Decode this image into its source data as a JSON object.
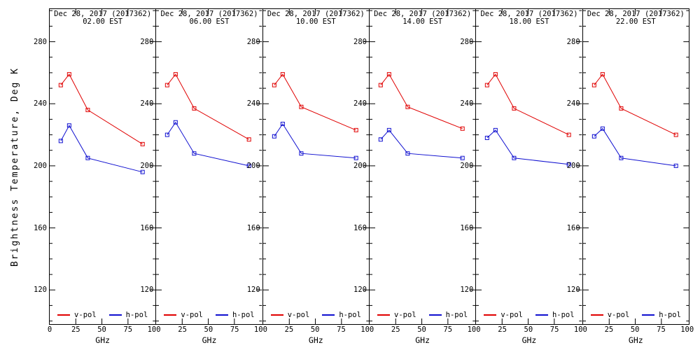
{
  "figure": {
    "y_axis_title": "Brightness Temperature, Deg K",
    "x_axis_title": "GHz",
    "colors": {
      "v_pol": "#e00000",
      "h_pol": "#1010d0",
      "axis": "#000000",
      "background": "#ffffff"
    }
  },
  "chart_data": {
    "type": "line",
    "x": [
      10.65,
      18.7,
      36.5,
      89.0
    ],
    "xlabel": "GHz",
    "ylabel": "Brightness Temperature, Deg K",
    "xlim": [
      0,
      101.5
    ],
    "ylim": [
      98,
      301
    ],
    "x_ticks": [
      0,
      25,
      50,
      75,
      100
    ],
    "y_ticks": [
      120,
      160,
      200,
      240,
      280
    ],
    "y_minor_step": 10,
    "grid": false,
    "legend_position": "bottom-inside-each-panel",
    "legend": [
      {
        "label": "v-pol",
        "color": "#e00000"
      },
      {
        "label": "h-pol",
        "color": "#1010d0"
      }
    ],
    "panels": [
      {
        "title_line1": "Dec 28, 2017 (2017362)",
        "title_line2": "02.00 EST",
        "series": [
          {
            "name": "v-pol",
            "color": "#e00000",
            "values": [
              252,
              259,
              236,
              214
            ]
          },
          {
            "name": "h-pol",
            "color": "#1010d0",
            "values": [
              216,
              226,
              205,
              196
            ]
          }
        ]
      },
      {
        "title_line1": "Dec 28, 2017 (2017362)",
        "title_line2": "06.00 EST",
        "series": [
          {
            "name": "v-pol",
            "color": "#e00000",
            "values": [
              252,
              259,
              237,
              217
            ]
          },
          {
            "name": "h-pol",
            "color": "#1010d0",
            "values": [
              220,
              228,
              208,
              200
            ]
          }
        ]
      },
      {
        "title_line1": "Dec 28, 2017 (2017362)",
        "title_line2": "10.00 EST",
        "series": [
          {
            "name": "v-pol",
            "color": "#e00000",
            "values": [
              252,
              259,
              238,
              223
            ]
          },
          {
            "name": "h-pol",
            "color": "#1010d0",
            "values": [
              219,
              227,
              208,
              205
            ]
          }
        ]
      },
      {
        "title_line1": "Dec 28, 2017 (2017362)",
        "title_line2": "14.00 EST",
        "series": [
          {
            "name": "v-pol",
            "color": "#e00000",
            "values": [
              252,
              259,
              238,
              224
            ]
          },
          {
            "name": "h-pol",
            "color": "#1010d0",
            "values": [
              217,
              223,
              208,
              205
            ]
          }
        ]
      },
      {
        "title_line1": "Dec 28, 2017 (2017362)",
        "title_line2": "18.00 EST",
        "series": [
          {
            "name": "v-pol",
            "color": "#e00000",
            "values": [
              252,
              259,
              237,
              220
            ]
          },
          {
            "name": "h-pol",
            "color": "#1010d0",
            "values": [
              218,
              223,
              205,
              201
            ]
          }
        ]
      },
      {
        "title_line1": "Dec 28, 2017 (2017362)",
        "title_line2": "22.00 EST",
        "series": [
          {
            "name": "v-pol",
            "color": "#e00000",
            "values": [
              252,
              259,
              237,
              220
            ]
          },
          {
            "name": "h-pol",
            "color": "#1010d0",
            "values": [
              219,
              224,
              205,
              200
            ]
          }
        ]
      }
    ]
  }
}
